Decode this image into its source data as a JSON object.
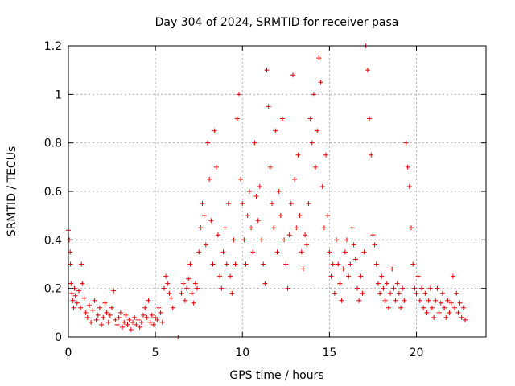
{
  "chart_data": {
    "type": "scatter",
    "title": "Day 304 of 2024, SRMTID for receiver pasa",
    "xlabel": "GPS time / hours",
    "ylabel": "SRMTID / TECUs",
    "xlim": [
      0,
      24
    ],
    "ylim": [
      0,
      1.2
    ],
    "x_ticks": [
      {
        "value": 0,
        "label": "0"
      },
      {
        "value": 5,
        "label": "5"
      },
      {
        "value": 10,
        "label": "10"
      },
      {
        "value": 15,
        "label": "15"
      },
      {
        "value": 20,
        "label": "20"
      }
    ],
    "y_ticks": [
      {
        "value": 0,
        "label": "0"
      },
      {
        "value": 0.2,
        "label": "0.2"
      },
      {
        "value": 0.4,
        "label": "0.4"
      },
      {
        "value": 0.6,
        "label": "0.6"
      },
      {
        "value": 0.8,
        "label": "0.8"
      },
      {
        "value": 1.0,
        "label": "1"
      },
      {
        "value": 1.2,
        "label": "1.2"
      }
    ],
    "grid": true,
    "marker": "+",
    "color": "#e00000",
    "series": [
      {
        "name": "SRMTID",
        "points": [
          [
            0.0,
            0.44
          ],
          [
            0.05,
            0.4
          ],
          [
            0.1,
            0.35
          ],
          [
            0.12,
            0.3
          ],
          [
            0.15,
            0.22
          ],
          [
            0.2,
            0.18
          ],
          [
            0.25,
            0.15
          ],
          [
            0.3,
            0.12
          ],
          [
            0.35,
            0.2
          ],
          [
            0.4,
            0.17
          ],
          [
            0.5,
            0.14
          ],
          [
            0.6,
            0.19
          ],
          [
            0.7,
            0.12
          ],
          [
            0.75,
            0.3
          ],
          [
            0.8,
            0.22
          ],
          [
            0.9,
            0.16
          ],
          [
            1.0,
            0.1
          ],
          [
            1.1,
            0.08
          ],
          [
            1.2,
            0.13
          ],
          [
            1.3,
            0.06
          ],
          [
            1.4,
            0.11
          ],
          [
            1.5,
            0.15
          ],
          [
            1.6,
            0.07
          ],
          [
            1.7,
            0.09
          ],
          [
            1.8,
            0.12
          ],
          [
            1.9,
            0.05
          ],
          [
            2.0,
            0.08
          ],
          [
            2.1,
            0.14
          ],
          [
            2.2,
            0.1
          ],
          [
            2.3,
            0.06
          ],
          [
            2.4,
            0.09
          ],
          [
            2.5,
            0.12
          ],
          [
            2.6,
            0.19
          ],
          [
            2.7,
            0.07
          ],
          [
            2.8,
            0.05
          ],
          [
            2.9,
            0.08
          ],
          [
            3.0,
            0.1
          ],
          [
            3.1,
            0.04
          ],
          [
            3.2,
            0.06
          ],
          [
            3.3,
            0.09
          ],
          [
            3.4,
            0.05
          ],
          [
            3.5,
            0.07
          ],
          [
            3.6,
            0.03
          ],
          [
            3.7,
            0.06
          ],
          [
            3.8,
            0.08
          ],
          [
            3.9,
            0.05
          ],
          [
            4.0,
            0.07
          ],
          [
            4.1,
            0.04
          ],
          [
            4.2,
            0.06
          ],
          [
            4.3,
            0.09
          ],
          [
            4.4,
            0.12
          ],
          [
            4.5,
            0.08
          ],
          [
            4.6,
            0.15
          ],
          [
            4.7,
            0.06
          ],
          [
            4.8,
            0.09
          ],
          [
            4.9,
            0.05
          ],
          [
            5.0,
            0.08
          ],
          [
            5.1,
            0.07
          ],
          [
            5.2,
            0.12
          ],
          [
            5.3,
            0.1
          ],
          [
            5.4,
            0.06
          ],
          [
            5.5,
            0.2
          ],
          [
            5.6,
            0.25
          ],
          [
            5.7,
            0.22
          ],
          [
            5.8,
            0.18
          ],
          [
            5.9,
            0.16
          ],
          [
            6.0,
            0.12
          ],
          [
            6.3,
            0.0
          ],
          [
            6.5,
            0.18
          ],
          [
            6.6,
            0.22
          ],
          [
            6.7,
            0.15
          ],
          [
            6.8,
            0.2
          ],
          [
            6.9,
            0.24
          ],
          [
            7.0,
            0.3
          ],
          [
            7.1,
            0.18
          ],
          [
            7.2,
            0.14
          ],
          [
            7.3,
            0.22
          ],
          [
            7.4,
            0.2
          ],
          [
            7.5,
            0.35
          ],
          [
            7.6,
            0.45
          ],
          [
            7.7,
            0.55
          ],
          [
            7.8,
            0.5
          ],
          [
            7.9,
            0.38
          ],
          [
            8.0,
            0.8
          ],
          [
            8.1,
            0.65
          ],
          [
            8.2,
            0.48
          ],
          [
            8.3,
            0.3
          ],
          [
            8.4,
            0.85
          ],
          [
            8.5,
            0.7
          ],
          [
            8.6,
            0.42
          ],
          [
            8.7,
            0.25
          ],
          [
            8.8,
            0.2
          ],
          [
            8.9,
            0.35
          ],
          [
            9.0,
            0.45
          ],
          [
            9.1,
            0.3
          ],
          [
            9.2,
            0.55
          ],
          [
            9.3,
            0.25
          ],
          [
            9.4,
            0.18
          ],
          [
            9.5,
            0.4
          ],
          [
            9.6,
            0.3
          ],
          [
            9.7,
            0.9
          ],
          [
            9.8,
            1.0
          ],
          [
            9.9,
            0.65
          ],
          [
            10.0,
            0.55
          ],
          [
            10.1,
            0.4
          ],
          [
            10.2,
            0.3
          ],
          [
            10.3,
            0.5
          ],
          [
            10.4,
            0.6
          ],
          [
            10.5,
            0.45
          ],
          [
            10.6,
            0.35
          ],
          [
            10.7,
            0.8
          ],
          [
            10.8,
            0.58
          ],
          [
            10.9,
            0.48
          ],
          [
            11.0,
            0.62
          ],
          [
            11.1,
            0.4
          ],
          [
            11.2,
            0.3
          ],
          [
            11.3,
            0.22
          ],
          [
            11.4,
            1.1
          ],
          [
            11.5,
            0.95
          ],
          [
            11.6,
            0.7
          ],
          [
            11.7,
            0.55
          ],
          [
            11.8,
            0.45
          ],
          [
            11.9,
            0.85
          ],
          [
            12.0,
            0.35
          ],
          [
            12.1,
            0.6
          ],
          [
            12.2,
            0.5
          ],
          [
            12.3,
            0.9
          ],
          [
            12.4,
            0.4
          ],
          [
            12.5,
            0.3
          ],
          [
            12.6,
            0.2
          ],
          [
            12.7,
            0.42
          ],
          [
            12.8,
            0.55
          ],
          [
            12.9,
            1.08
          ],
          [
            13.0,
            0.65
          ],
          [
            13.1,
            0.45
          ],
          [
            13.2,
            0.75
          ],
          [
            13.3,
            0.5
          ],
          [
            13.4,
            0.35
          ],
          [
            13.5,
            0.28
          ],
          [
            13.6,
            0.42
          ],
          [
            13.7,
            0.38
          ],
          [
            13.8,
            0.55
          ],
          [
            13.9,
            0.9
          ],
          [
            14.0,
            0.8
          ],
          [
            14.1,
            1.0
          ],
          [
            14.2,
            0.7
          ],
          [
            14.3,
            0.85
          ],
          [
            14.4,
            1.15
          ],
          [
            14.5,
            1.05
          ],
          [
            14.6,
            0.62
          ],
          [
            14.7,
            0.45
          ],
          [
            14.8,
            0.75
          ],
          [
            14.9,
            0.5
          ],
          [
            15.0,
            0.35
          ],
          [
            15.1,
            0.25
          ],
          [
            15.2,
            0.3
          ],
          [
            15.3,
            0.18
          ],
          [
            15.4,
            0.4
          ],
          [
            15.5,
            0.3
          ],
          [
            15.6,
            0.22
          ],
          [
            15.7,
            0.15
          ],
          [
            15.8,
            0.28
          ],
          [
            15.9,
            0.35
          ],
          [
            16.0,
            0.4
          ],
          [
            16.1,
            0.25
          ],
          [
            16.2,
            0.3
          ],
          [
            16.3,
            0.45
          ],
          [
            16.4,
            0.38
          ],
          [
            16.5,
            0.32
          ],
          [
            16.6,
            0.2
          ],
          [
            16.7,
            0.15
          ],
          [
            16.8,
            0.25
          ],
          [
            16.9,
            0.18
          ],
          [
            17.0,
            0.35
          ],
          [
            17.1,
            1.2
          ],
          [
            17.2,
            1.1
          ],
          [
            17.3,
            0.9
          ],
          [
            17.4,
            0.75
          ],
          [
            17.5,
            0.42
          ],
          [
            17.6,
            0.38
          ],
          [
            17.7,
            0.3
          ],
          [
            17.8,
            0.22
          ],
          [
            17.9,
            0.18
          ],
          [
            18.0,
            0.25
          ],
          [
            18.1,
            0.2
          ],
          [
            18.2,
            0.15
          ],
          [
            18.3,
            0.22
          ],
          [
            18.4,
            0.12
          ],
          [
            18.5,
            0.18
          ],
          [
            18.6,
            0.28
          ],
          [
            18.7,
            0.2
          ],
          [
            18.8,
            0.15
          ],
          [
            18.9,
            0.22
          ],
          [
            19.0,
            0.18
          ],
          [
            19.1,
            0.12
          ],
          [
            19.2,
            0.2
          ],
          [
            19.3,
            0.15
          ],
          [
            19.4,
            0.8
          ],
          [
            19.5,
            0.7
          ],
          [
            19.6,
            0.62
          ],
          [
            19.7,
            0.45
          ],
          [
            19.8,
            0.3
          ],
          [
            19.9,
            0.2
          ],
          [
            20.0,
            0.18
          ],
          [
            20.1,
            0.25
          ],
          [
            20.2,
            0.15
          ],
          [
            20.3,
            0.2
          ],
          [
            20.4,
            0.12
          ],
          [
            20.5,
            0.18
          ],
          [
            20.6,
            0.1
          ],
          [
            20.7,
            0.15
          ],
          [
            20.8,
            0.2
          ],
          [
            20.9,
            0.12
          ],
          [
            21.0,
            0.08
          ],
          [
            21.1,
            0.15
          ],
          [
            21.2,
            0.2
          ],
          [
            21.3,
            0.1
          ],
          [
            21.4,
            0.14
          ],
          [
            21.5,
            0.18
          ],
          [
            21.6,
            0.12
          ],
          [
            21.7,
            0.08
          ],
          [
            21.8,
            0.15
          ],
          [
            21.9,
            0.1
          ],
          [
            22.0,
            0.14
          ],
          [
            22.1,
            0.25
          ],
          [
            22.2,
            0.12
          ],
          [
            22.3,
            0.18
          ],
          [
            22.4,
            0.1
          ],
          [
            22.5,
            0.14
          ],
          [
            22.6,
            0.08
          ],
          [
            22.7,
            0.12
          ],
          [
            22.8,
            0.07
          ]
        ]
      }
    ]
  }
}
